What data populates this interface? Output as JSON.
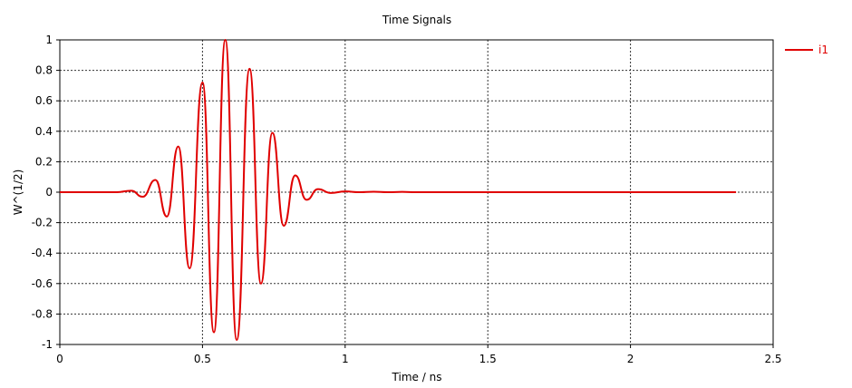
{
  "chart_data": {
    "type": "line",
    "title": "Time Signals",
    "xlabel": "Time / ns",
    "ylabel": "W^(1/2)",
    "xlim": [
      0,
      2.5
    ],
    "ylim": [
      -1,
      1
    ],
    "xticks": [
      0,
      0.5,
      1,
      1.5,
      2,
      2.5
    ],
    "xtick_labels": [
      "0",
      "0.5",
      "1",
      "1.5",
      "2",
      "2.5"
    ],
    "yticks": [
      1,
      0.8,
      0.6,
      0.4,
      0.2,
      0,
      -0.2,
      -0.4,
      -0.6,
      -0.8,
      -1
    ],
    "ytick_labels": [
      "1",
      "0.8",
      "0.6",
      "0.4",
      "0.2",
      "0",
      "-0.2",
      "-0.4",
      "-0.6",
      "-0.8",
      "-1"
    ],
    "grid": true,
    "legend_position": "top-right",
    "series": [
      {
        "name": "i1",
        "color": "#e00000",
        "x": [
          0,
          0.16,
          0.2,
          0.25,
          0.29,
          0.335,
          0.375,
          0.415,
          0.455,
          0.5,
          0.54,
          0.58,
          0.62,
          0.665,
          0.705,
          0.745,
          0.785,
          0.825,
          0.865,
          0.905,
          0.95,
          1.0,
          1.05,
          1.1,
          1.15,
          1.2,
          1.25,
          1.3,
          2.37
        ],
        "y": [
          0,
          0,
          0,
          0.01,
          -0.03,
          0.08,
          -0.16,
          0.3,
          -0.5,
          0.72,
          -0.92,
          1.0,
          -0.97,
          0.81,
          -0.6,
          0.39,
          -0.22,
          0.11,
          -0.05,
          0.02,
          -0.005,
          0.005,
          0,
          0.003,
          0,
          0.002,
          0,
          0,
          0
        ]
      }
    ]
  }
}
